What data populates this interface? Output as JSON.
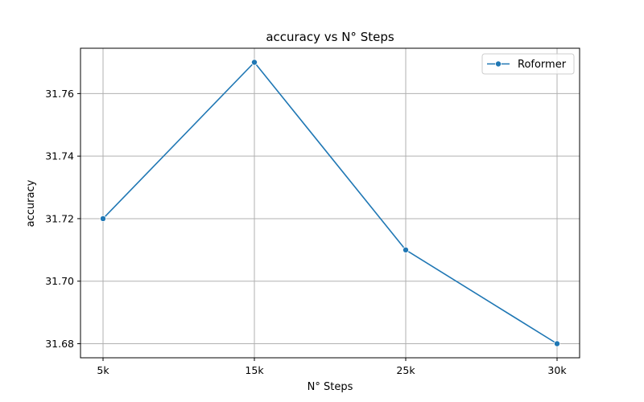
{
  "chart_data": {
    "type": "line",
    "title": "accuracy vs N° Steps",
    "xlabel": "N° Steps",
    "ylabel": "accuracy",
    "categories": [
      "5k",
      "15k",
      "25k",
      "30k"
    ],
    "series": [
      {
        "name": "Roformer",
        "values": [
          31.72,
          31.77,
          31.71,
          31.68
        ],
        "color": "#1f77b4"
      }
    ],
    "ylim": [
      31.6755,
      31.7745
    ],
    "yticks": [
      "31.68",
      "31.70",
      "31.72",
      "31.74",
      "31.76"
    ],
    "grid": true,
    "legend_position": "top-right",
    "marker": "circle"
  }
}
